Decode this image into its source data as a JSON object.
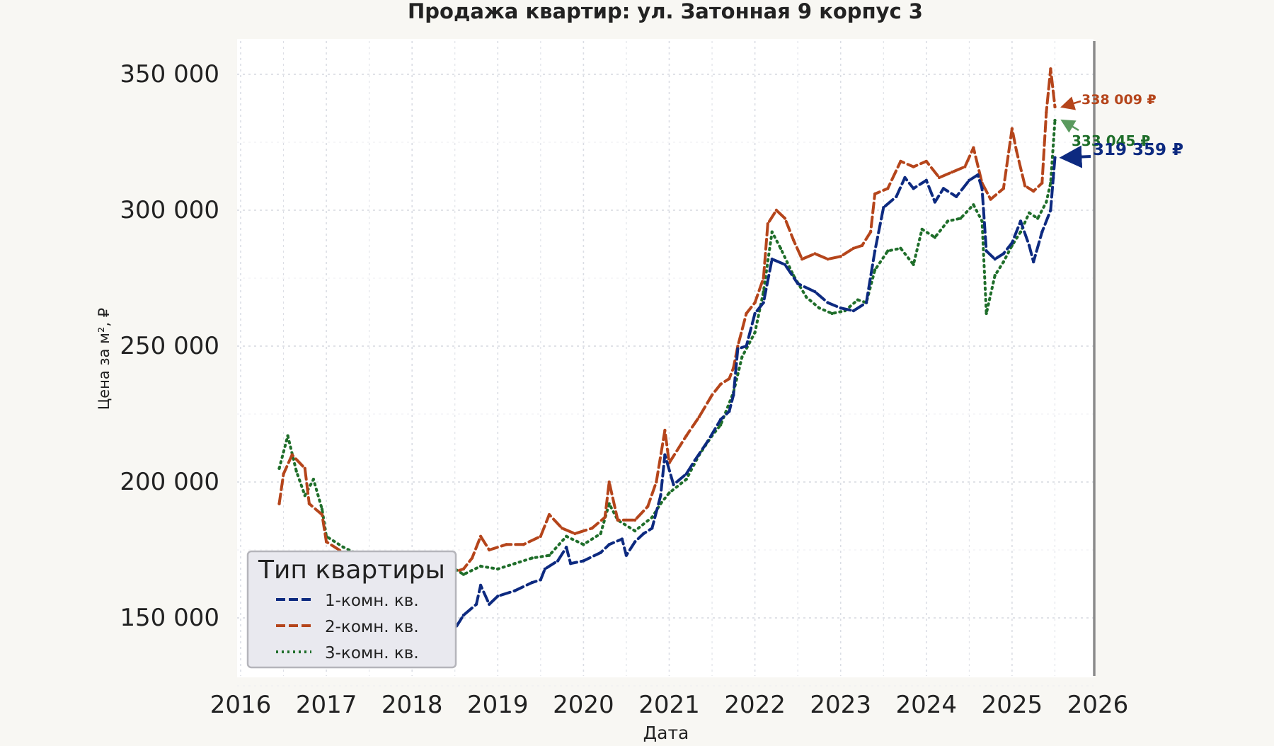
{
  "chart_data": {
    "type": "line",
    "title": "Продажа квартир: ул. Затонная 9 корпус 3",
    "xlabel": "Дата",
    "ylabel": "Цена за м², ₽",
    "xlim": [
      2016.0,
      2026.0
    ],
    "ylim": [
      128000,
      363000
    ],
    "x_ticks": [
      2016,
      2017,
      2018,
      2019,
      2020,
      2021,
      2022,
      2023,
      2024,
      2025,
      2026
    ],
    "x_tick_labels": [
      "2016",
      "2017",
      "2018",
      "2019",
      "2020",
      "2021",
      "2022",
      "2023",
      "2024",
      "2025",
      "2026"
    ],
    "y_ticks": [
      150000,
      200000,
      250000,
      300000,
      350000
    ],
    "y_tick_labels": [
      "150 000",
      "200 000",
      "250 000",
      "300 000",
      "350 000"
    ],
    "grid": true,
    "vertical_marker_x": 2026.0,
    "legend": {
      "title": "Тип квартиры",
      "placement": "lower-left"
    },
    "series": [
      {
        "name": "1-комн. кв.",
        "color": "#0d2a80",
        "style": "dashed",
        "end_label": "319 359 ₽",
        "points": [
          [
            2016.45,
            160000
          ],
          [
            2016.6,
            160500
          ],
          [
            2016.75,
            157000
          ],
          [
            2016.9,
            152000
          ],
          [
            2017.1,
            148000
          ],
          [
            2017.3,
            147000
          ],
          [
            2017.5,
            146000
          ],
          [
            2017.7,
            147000
          ],
          [
            2017.9,
            144000
          ],
          [
            2018.1,
            141000
          ],
          [
            2018.3,
            143000
          ],
          [
            2018.5,
            146000
          ],
          [
            2018.6,
            151000
          ],
          [
            2018.75,
            155000
          ],
          [
            2018.8,
            162000
          ],
          [
            2018.9,
            155000
          ],
          [
            2019.0,
            158000
          ],
          [
            2019.2,
            160000
          ],
          [
            2019.4,
            163000
          ],
          [
            2019.5,
            164000
          ],
          [
            2019.55,
            168000
          ],
          [
            2019.7,
            171000
          ],
          [
            2019.8,
            176000
          ],
          [
            2019.85,
            170000
          ],
          [
            2020.0,
            171000
          ],
          [
            2020.2,
            174000
          ],
          [
            2020.3,
            177000
          ],
          [
            2020.45,
            179000
          ],
          [
            2020.5,
            173000
          ],
          [
            2020.6,
            178000
          ],
          [
            2020.7,
            181000
          ],
          [
            2020.8,
            183000
          ],
          [
            2020.9,
            195000
          ],
          [
            2020.95,
            210000
          ],
          [
            2021.05,
            199000
          ],
          [
            2021.2,
            203000
          ],
          [
            2021.3,
            208000
          ],
          [
            2021.45,
            215000
          ],
          [
            2021.6,
            223000
          ],
          [
            2021.7,
            226000
          ],
          [
            2021.75,
            232000
          ],
          [
            2021.8,
            249000
          ],
          [
            2021.9,
            250000
          ],
          [
            2022.0,
            262000
          ],
          [
            2022.1,
            266000
          ],
          [
            2022.2,
            282000
          ],
          [
            2022.35,
            280000
          ],
          [
            2022.5,
            273000
          ],
          [
            2022.7,
            270000
          ],
          [
            2022.85,
            266000
          ],
          [
            2023.0,
            264000
          ],
          [
            2023.15,
            263000
          ],
          [
            2023.3,
            266000
          ],
          [
            2023.4,
            285000
          ],
          [
            2023.5,
            301000
          ],
          [
            2023.65,
            305000
          ],
          [
            2023.75,
            312000
          ],
          [
            2023.85,
            308000
          ],
          [
            2024.0,
            311000
          ],
          [
            2024.1,
            303000
          ],
          [
            2024.2,
            308000
          ],
          [
            2024.35,
            305000
          ],
          [
            2024.5,
            311000
          ],
          [
            2024.6,
            313000
          ],
          [
            2024.65,
            308000
          ],
          [
            2024.7,
            285000
          ],
          [
            2024.8,
            282000
          ],
          [
            2024.9,
            284000
          ],
          [
            2025.0,
            288000
          ],
          [
            2025.1,
            296000
          ],
          [
            2025.2,
            287000
          ],
          [
            2025.25,
            281000
          ],
          [
            2025.35,
            292000
          ],
          [
            2025.45,
            300000
          ],
          [
            2025.5,
            319359
          ]
        ]
      },
      {
        "name": "2-комн. кв.",
        "color": "#b5451b",
        "style": "dashed",
        "end_label": "338 009 ₽",
        "points": [
          [
            2016.45,
            192000
          ],
          [
            2016.5,
            203000
          ],
          [
            2016.6,
            210000
          ],
          [
            2016.75,
            205000
          ],
          [
            2016.8,
            192000
          ],
          [
            2016.95,
            188000
          ],
          [
            2017.0,
            178000
          ],
          [
            2017.2,
            174000
          ],
          [
            2017.4,
            165000
          ],
          [
            2017.6,
            169000
          ],
          [
            2017.8,
            166000
          ],
          [
            2018.0,
            161000
          ],
          [
            2018.2,
            163000
          ],
          [
            2018.4,
            166000
          ],
          [
            2018.6,
            168000
          ],
          [
            2018.7,
            172000
          ],
          [
            2018.8,
            180000
          ],
          [
            2018.9,
            175000
          ],
          [
            2019.1,
            177000
          ],
          [
            2019.3,
            177000
          ],
          [
            2019.5,
            180000
          ],
          [
            2019.6,
            188000
          ],
          [
            2019.75,
            183000
          ],
          [
            2019.9,
            181000
          ],
          [
            2020.1,
            183000
          ],
          [
            2020.25,
            187000
          ],
          [
            2020.3,
            200000
          ],
          [
            2020.4,
            186000
          ],
          [
            2020.6,
            186000
          ],
          [
            2020.75,
            191000
          ],
          [
            2020.85,
            200000
          ],
          [
            2020.95,
            219000
          ],
          [
            2021.0,
            207000
          ],
          [
            2021.2,
            217000
          ],
          [
            2021.35,
            224000
          ],
          [
            2021.5,
            232000
          ],
          [
            2021.6,
            236000
          ],
          [
            2021.7,
            238000
          ],
          [
            2021.75,
            242000
          ],
          [
            2021.8,
            250000
          ],
          [
            2021.9,
            262000
          ],
          [
            2022.0,
            266000
          ],
          [
            2022.1,
            275000
          ],
          [
            2022.15,
            295000
          ],
          [
            2022.25,
            300000
          ],
          [
            2022.35,
            297000
          ],
          [
            2022.45,
            289000
          ],
          [
            2022.55,
            282000
          ],
          [
            2022.7,
            284000
          ],
          [
            2022.85,
            282000
          ],
          [
            2023.0,
            283000
          ],
          [
            2023.15,
            286000
          ],
          [
            2023.25,
            287000
          ],
          [
            2023.35,
            292000
          ],
          [
            2023.4,
            306000
          ],
          [
            2023.55,
            308000
          ],
          [
            2023.7,
            318000
          ],
          [
            2023.85,
            316000
          ],
          [
            2024.0,
            318000
          ],
          [
            2024.15,
            312000
          ],
          [
            2024.3,
            314000
          ],
          [
            2024.45,
            316000
          ],
          [
            2024.55,
            323000
          ],
          [
            2024.65,
            310000
          ],
          [
            2024.75,
            304000
          ],
          [
            2024.9,
            308000
          ],
          [
            2025.0,
            330000
          ],
          [
            2025.05,
            322000
          ],
          [
            2025.15,
            309000
          ],
          [
            2025.25,
            307000
          ],
          [
            2025.35,
            310000
          ],
          [
            2025.4,
            336000
          ],
          [
            2025.45,
            352000
          ],
          [
            2025.5,
            338009
          ]
        ]
      },
      {
        "name": "3-комн. кв.",
        "color": "#1f6e2a",
        "style": "dotted",
        "end_label": "333 045 ₽",
        "points": [
          [
            2016.45,
            205000
          ],
          [
            2016.55,
            217000
          ],
          [
            2016.65,
            204000
          ],
          [
            2016.75,
            195000
          ],
          [
            2016.85,
            201000
          ],
          [
            2016.95,
            190000
          ],
          [
            2017.0,
            180000
          ],
          [
            2017.2,
            176000
          ],
          [
            2017.4,
            173000
          ],
          [
            2017.6,
            172000
          ],
          [
            2017.8,
            168000
          ],
          [
            2018.0,
            165000
          ],
          [
            2018.2,
            167000
          ],
          [
            2018.4,
            170000
          ],
          [
            2018.6,
            166000
          ],
          [
            2018.8,
            169000
          ],
          [
            2019.0,
            168000
          ],
          [
            2019.2,
            170000
          ],
          [
            2019.4,
            172000
          ],
          [
            2019.6,
            173000
          ],
          [
            2019.8,
            180000
          ],
          [
            2020.0,
            177000
          ],
          [
            2020.2,
            181000
          ],
          [
            2020.3,
            192000
          ],
          [
            2020.4,
            186000
          ],
          [
            2020.6,
            182000
          ],
          [
            2020.8,
            187000
          ],
          [
            2020.9,
            192000
          ],
          [
            2021.0,
            196000
          ],
          [
            2021.2,
            201000
          ],
          [
            2021.35,
            210000
          ],
          [
            2021.5,
            217000
          ],
          [
            2021.6,
            221000
          ],
          [
            2021.75,
            233000
          ],
          [
            2021.85,
            246000
          ],
          [
            2022.0,
            255000
          ],
          [
            2022.1,
            270000
          ],
          [
            2022.2,
            292000
          ],
          [
            2022.3,
            286000
          ],
          [
            2022.45,
            276000
          ],
          [
            2022.6,
            268000
          ],
          [
            2022.75,
            264000
          ],
          [
            2022.9,
            262000
          ],
          [
            2023.05,
            263000
          ],
          [
            2023.2,
            267000
          ],
          [
            2023.3,
            266000
          ],
          [
            2023.4,
            278000
          ],
          [
            2023.55,
            285000
          ],
          [
            2023.7,
            286000
          ],
          [
            2023.85,
            280000
          ],
          [
            2023.95,
            293000
          ],
          [
            2024.1,
            290000
          ],
          [
            2024.25,
            296000
          ],
          [
            2024.4,
            297000
          ],
          [
            2024.55,
            302000
          ],
          [
            2024.65,
            296000
          ],
          [
            2024.7,
            262000
          ],
          [
            2024.8,
            276000
          ],
          [
            2024.9,
            281000
          ],
          [
            2025.0,
            287000
          ],
          [
            2025.1,
            292000
          ],
          [
            2025.2,
            299000
          ],
          [
            2025.3,
            297000
          ],
          [
            2025.4,
            303000
          ],
          [
            2025.45,
            310000
          ],
          [
            2025.5,
            333045
          ]
        ]
      }
    ]
  }
}
